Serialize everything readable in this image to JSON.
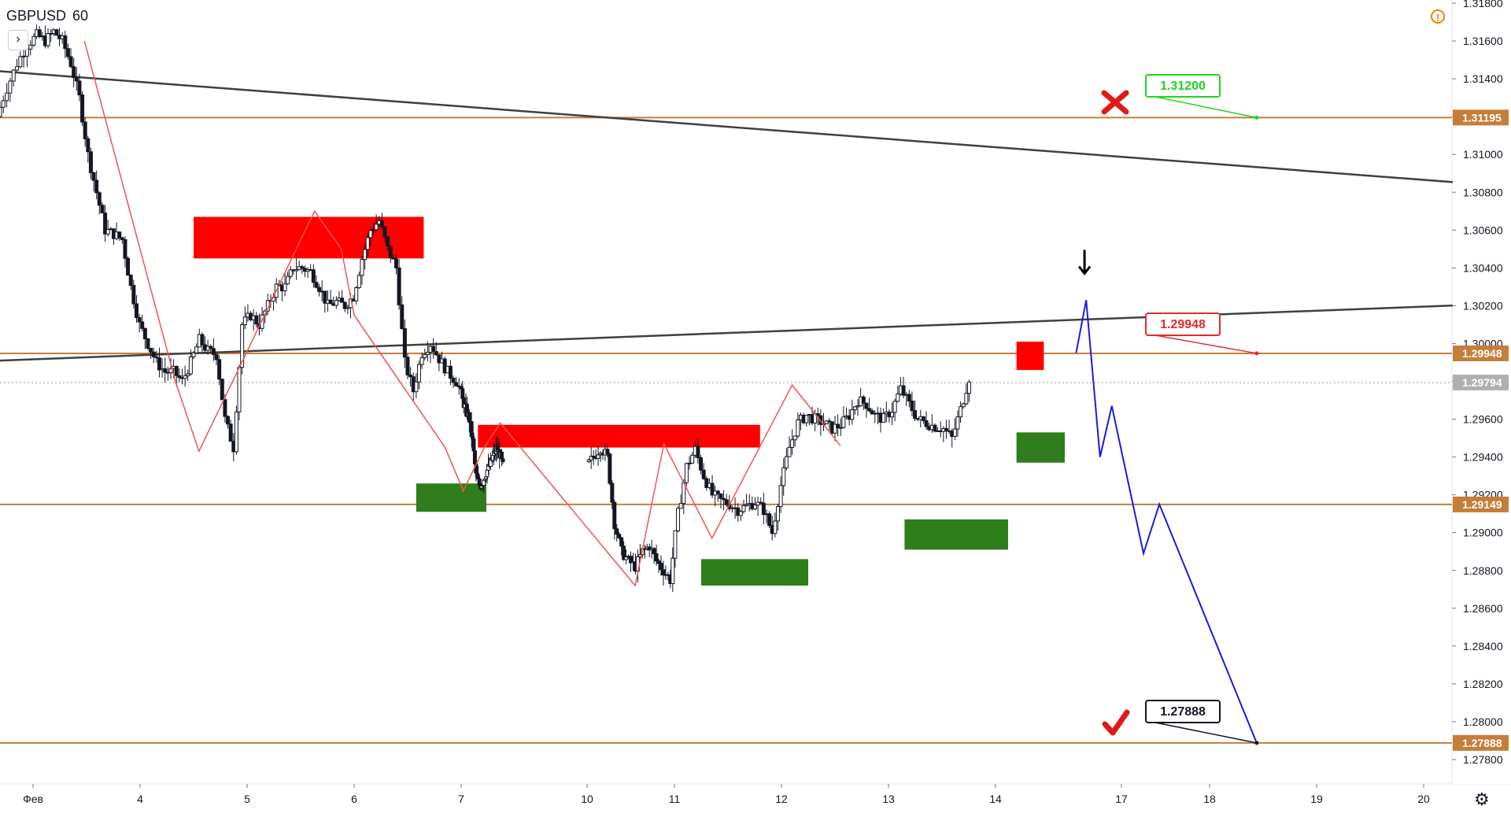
{
  "header": {
    "symbol": "GBPUSD",
    "timeframe": "60"
  },
  "colors": {
    "level_line": "#c57e3a",
    "trend_line": "#404040",
    "zigzag": "#f05454",
    "supply_zone": "#ff0000",
    "demand_zone": "#2f7d1c",
    "projection": "#1c1cd8",
    "target_tag": "#1fd41f",
    "stop_tag": "#e02c2c",
    "final_tag": "#131722",
    "candle": "#131722"
  },
  "icons": {
    "alert": "warning-circle-icon",
    "settings": "gear-icon",
    "expand": "chevron-right-icon",
    "down_arrow": "arrow-down-icon",
    "fail": "red-cross-icon",
    "success": "red-check-icon"
  },
  "chart_data": {
    "type": "candlestick",
    "symbol": "GBPUSD",
    "interval": "60",
    "ylim": [
      1.277,
      1.3185
    ],
    "y_ticks": [
      "1.31800",
      "1.31600",
      "1.31400",
      "1.31200",
      "1.31000",
      "1.30800",
      "1.30600",
      "1.30400",
      "1.30200",
      "1.30000",
      "1.29800",
      "1.29600",
      "1.29400",
      "1.29200",
      "1.29000",
      "1.28800",
      "1.28600",
      "1.28400",
      "1.28200",
      "1.28000",
      "1.27800"
    ],
    "x_ticks": [
      {
        "label": "Фев",
        "day": 3.0
      },
      {
        "label": "4",
        "day": 4.0
      },
      {
        "label": "5",
        "day": 5.0
      },
      {
        "label": "6",
        "day": 6.0
      },
      {
        "label": "7",
        "day": 7.0
      },
      {
        "label": "10",
        "day": 10.0
      },
      {
        "label": "11",
        "day": 11.0
      },
      {
        "label": "12",
        "day": 12.0
      },
      {
        "label": "13",
        "day": 13.0
      },
      {
        "label": "14",
        "day": 14.0
      },
      {
        "label": "17",
        "day": 17.0
      },
      {
        "label": "18",
        "day": 18.0
      },
      {
        "label": "19",
        "day": 19.0
      },
      {
        "label": "20",
        "day": 20.0
      }
    ],
    "price_labels": [
      {
        "value": "1.31195",
        "price": 1.31195,
        "fill": "#c57e3a"
      },
      {
        "value": "1.29948",
        "price": 1.29948,
        "fill": "#c57e3a"
      },
      {
        "value": "1.29794",
        "price": 1.29794,
        "fill": "#b0b0b0"
      },
      {
        "value": "1.29149",
        "price": 1.29149,
        "fill": "#c57e3a"
      },
      {
        "value": "1.27888",
        "price": 1.27888,
        "fill": "#c57e3a"
      }
    ],
    "horizontal_levels": [
      1.31195,
      1.29948,
      1.29149,
      1.27888
    ],
    "current_price": 1.29794,
    "trend_lines": [
      {
        "from": {
          "day": 2.74,
          "price": 1.3144
        },
        "to": {
          "day": 18.82,
          "price": 1.3083
        }
      },
      {
        "from": {
          "day": 2.74,
          "price": 1.2991
        },
        "to": {
          "day": 18.7,
          "price": 1.3021
        }
      }
    ],
    "zones": [
      {
        "kind": "supply",
        "x0": 4.5,
        "x1": 6.65,
        "p_top": 1.3067,
        "p_bot": 1.3045
      },
      {
        "kind": "supply",
        "x0": 7.4,
        "x1": 9.8,
        "p_top": 1.2957,
        "p_bot": 1.2945
      },
      {
        "kind": "supply",
        "x0": 12.5,
        "x1": 13.15,
        "p_top": 1.3001,
        "p_bot": 1.2986
      },
      {
        "kind": "demand",
        "x0": 6.58,
        "x1": 7.6,
        "p_top": 1.2926,
        "p_bot": 1.2911
      },
      {
        "kind": "demand",
        "x0": 9.25,
        "x1": 10.25,
        "p_top": 1.2886,
        "p_bot": 1.2872
      },
      {
        "kind": "demand",
        "x0": 11.15,
        "x1": 12.3,
        "p_top": 1.2907,
        "p_bot": 1.2891
      },
      {
        "kind": "demand",
        "x0": 12.5,
        "x1": 13.65,
        "p_top": 1.2953,
        "p_bot": 1.2937
      }
    ],
    "zigzag": [
      [
        3.48,
        1.316
      ],
      [
        4.33,
        1.298
      ],
      [
        4.55,
        1.2943
      ],
      [
        5.63,
        1.307
      ],
      [
        5.88,
        1.305
      ],
      [
        6.0,
        1.3015
      ],
      [
        6.85,
        1.2945
      ],
      [
        7.05,
        1.2922
      ],
      [
        7.55,
        1.2945
      ],
      [
        7.93,
        1.2958
      ],
      [
        8.55,
        1.2872
      ],
      [
        8.88,
        1.2947
      ],
      [
        9.35,
        1.2897
      ],
      [
        10.1,
        1.2978
      ],
      [
        10.55,
        1.2946
      ]
    ],
    "zigzag_day_map": "trading",
    "projection": [
      [
        13.92,
        1.2995
      ],
      [
        14.16,
        1.3023
      ],
      [
        14.49,
        1.294
      ],
      [
        14.77,
        1.2967
      ],
      [
        15.25,
        1.2889
      ],
      [
        15.43,
        1.2915
      ],
      [
        16.44,
        1.27888
      ]
    ],
    "candle_seed": [
      [
        2.74,
        1.312
      ],
      [
        2.82,
        1.3135
      ],
      [
        2.9,
        1.3148
      ],
      [
        2.98,
        1.3158
      ],
      [
        3.06,
        1.3163
      ],
      [
        3.14,
        1.316
      ],
      [
        3.22,
        1.3165
      ],
      [
        3.3,
        1.316
      ],
      [
        3.38,
        1.3148
      ],
      [
        3.46,
        1.313
      ],
      [
        3.54,
        1.31
      ],
      [
        3.62,
        1.308
      ],
      [
        3.7,
        1.306
      ],
      [
        3.78,
        1.3058
      ],
      [
        3.86,
        1.3055
      ],
      [
        3.94,
        1.303
      ],
      [
        4.02,
        1.301
      ],
      [
        4.1,
        1.3
      ],
      [
        4.18,
        1.299
      ],
      [
        4.26,
        1.2985
      ],
      [
        4.34,
        1.2985
      ],
      [
        4.42,
        1.298
      ],
      [
        4.5,
        1.299
      ],
      [
        4.58,
        1.3002
      ],
      [
        4.66,
        1.2996
      ],
      [
        4.74,
        1.2994
      ],
      [
        4.82,
        1.296
      ],
      [
        4.9,
        1.2945
      ],
      [
        4.98,
        1.301
      ],
      [
        5.06,
        1.3015
      ],
      [
        5.14,
        1.301
      ],
      [
        5.22,
        1.302
      ],
      [
        5.3,
        1.303
      ],
      [
        5.38,
        1.303
      ],
      [
        5.46,
        1.304
      ],
      [
        5.54,
        1.304
      ],
      [
        5.62,
        1.3038
      ],
      [
        5.7,
        1.303
      ],
      [
        5.78,
        1.302
      ],
      [
        5.86,
        1.3022
      ],
      [
        5.94,
        1.302
      ],
      [
        6.02,
        1.3025
      ],
      [
        6.1,
        1.3045
      ],
      [
        6.18,
        1.306
      ],
      [
        6.26,
        1.3065
      ],
      [
        6.34,
        1.305
      ],
      [
        6.42,
        1.304
      ],
      [
        6.5,
        1.299
      ],
      [
        6.58,
        1.2975
      ],
      [
        6.66,
        1.2995
      ],
      [
        6.74,
        1.3
      ],
      [
        6.82,
        1.2992
      ],
      [
        6.9,
        1.2985
      ],
      [
        6.98,
        1.298
      ],
      [
        7.06,
        1.297
      ],
      [
        7.14,
        1.2965
      ],
      [
        7.22,
        1.296
      ],
      [
        7.3,
        1.2948
      ],
      [
        7.38,
        1.293
      ],
      [
        7.46,
        1.2925
      ],
      [
        7.54,
        1.2927
      ],
      [
        7.62,
        1.2932
      ],
      [
        7.7,
        1.2935
      ],
      [
        7.78,
        1.294
      ],
      [
        7.86,
        1.2944
      ],
      [
        7.94,
        1.2942
      ],
      [
        8.02,
        1.2935
      ],
      [
        8.1,
        1.294
      ],
      [
        8.18,
        1.2945
      ],
      [
        8.26,
        1.294
      ],
      [
        8.34,
        1.2905
      ],
      [
        8.42,
        1.289
      ],
      [
        8.5,
        1.2885
      ],
      [
        8.58,
        1.2882
      ],
      [
        8.66,
        1.289
      ],
      [
        8.74,
        1.2893
      ],
      [
        8.82,
        1.2885
      ],
      [
        8.9,
        1.288
      ],
      [
        8.98,
        1.2875
      ],
      [
        9.06,
        1.291
      ],
      [
        9.14,
        1.2935
      ],
      [
        9.22,
        1.2944
      ],
      [
        9.3,
        1.293
      ],
      [
        9.38,
        1.292
      ],
      [
        9.46,
        1.2917
      ],
      [
        9.54,
        1.2915
      ],
      [
        9.62,
        1.2912
      ],
      [
        9.7,
        1.2914
      ],
      [
        9.78,
        1.2916
      ],
      [
        9.86,
        1.2912
      ],
      [
        9.94,
        1.29
      ],
      [
        10.02,
        1.2925
      ],
      [
        10.1,
        1.2945
      ],
      [
        10.18,
        1.2958
      ],
      [
        10.26,
        1.2962
      ],
      [
        10.34,
        1.296
      ],
      [
        10.42,
        1.2958
      ],
      [
        10.5,
        1.2955
      ],
      [
        10.58,
        1.2957
      ],
      [
        10.66,
        1.2962
      ],
      [
        10.74,
        1.297
      ],
      [
        10.82,
        1.2968
      ],
      [
        10.9,
        1.2962
      ],
      [
        10.98,
        1.296
      ],
      [
        11.06,
        1.2965
      ],
      [
        11.14,
        1.2976
      ],
      [
        11.22,
        1.2968
      ],
      [
        11.3,
        1.296
      ],
      [
        11.38,
        1.2958
      ],
      [
        11.46,
        1.2956
      ],
      [
        11.54,
        1.2955
      ],
      [
        11.62,
        1.295
      ],
      [
        11.7,
        1.2965
      ],
      [
        11.78,
        1.2982
      ]
    ]
  }
}
